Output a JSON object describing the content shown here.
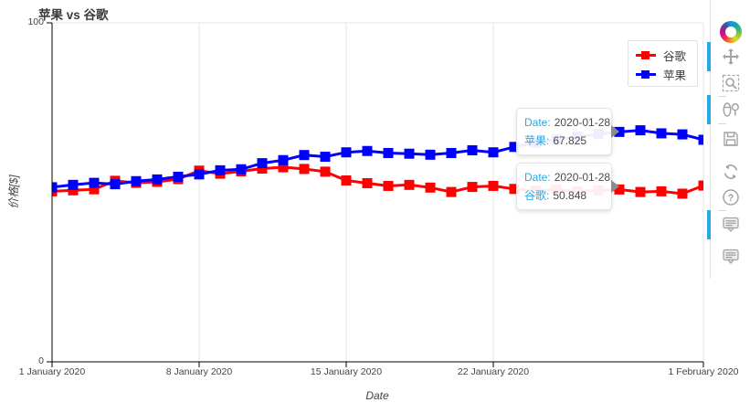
{
  "chart_data": {
    "type": "line",
    "title": "苹果 vs 谷歌",
    "xlabel": "Date",
    "ylabel": "价格[$]",
    "ylim": [
      0,
      100
    ],
    "grid": "vertical",
    "legend_position": "top-right",
    "marker": "square",
    "x": [
      "2020-01-01",
      "2020-01-02",
      "2020-01-03",
      "2020-01-04",
      "2020-01-05",
      "2020-01-06",
      "2020-01-07",
      "2020-01-08",
      "2020-01-09",
      "2020-01-10",
      "2020-01-11",
      "2020-01-12",
      "2020-01-13",
      "2020-01-14",
      "2020-01-15",
      "2020-01-16",
      "2020-01-17",
      "2020-01-18",
      "2020-01-19",
      "2020-01-20",
      "2020-01-21",
      "2020-01-22",
      "2020-01-23",
      "2020-01-24",
      "2020-01-25",
      "2020-01-26",
      "2020-01-27",
      "2020-01-28",
      "2020-01-29",
      "2020-01-30",
      "2020-01-31",
      "2020-02-01"
    ],
    "x_tick_index": [
      0,
      7,
      14,
      21,
      31
    ],
    "x_tick_labels": [
      "1 January 2020",
      "8 January 2020",
      "15 January 2020",
      "22 January 2020",
      "1 February 2020"
    ],
    "y_tick_labels": [
      "0",
      "100"
    ],
    "series": [
      {
        "name": "谷歌",
        "color": "#ff0000",
        "values": [
          50.3,
          50.6,
          50.9,
          53.4,
          52.8,
          53.1,
          53.9,
          56.4,
          55.5,
          56.2,
          57.0,
          57.4,
          56.9,
          56.1,
          53.5,
          52.7,
          51.9,
          52.2,
          51.4,
          50.1,
          51.6,
          51.9,
          51.0,
          50.5,
          50.8,
          50.3,
          50.6,
          50.848,
          50.1,
          50.3,
          49.6,
          52.0
        ]
      },
      {
        "name": "苹果",
        "color": "#0000ff",
        "values": [
          51.5,
          52.2,
          52.8,
          52.4,
          53.3,
          53.8,
          54.6,
          55.3,
          56.5,
          56.8,
          58.6,
          59.5,
          61.0,
          60.5,
          61.8,
          62.2,
          61.6,
          61.4,
          61.1,
          61.6,
          62.4,
          61.8,
          63.4,
          64.7,
          65.6,
          66.4,
          67.2,
          67.825,
          68.3,
          67.4,
          67.1,
          65.5
        ]
      }
    ]
  },
  "tooltips": [
    {
      "series": "苹果",
      "rows": [
        {
          "label": "Date:",
          "value": "2020-01-28"
        },
        {
          "label": "苹果:",
          "value": "67.825"
        }
      ]
    },
    {
      "series": "谷歌",
      "rows": [
        {
          "label": "Date:",
          "value": "2020-01-28"
        },
        {
          "label": "谷歌:",
          "value": "50.848"
        }
      ]
    }
  ],
  "toolbar": {
    "tools": [
      {
        "name": "pan",
        "active": true
      },
      {
        "name": "box-zoom",
        "active": false
      },
      {
        "name": "wheel-zoom",
        "active": true
      },
      {
        "name": "save",
        "active": false
      },
      {
        "name": "reset",
        "active": false
      },
      {
        "name": "help",
        "active": false
      },
      {
        "name": "hover-apple",
        "active": true
      },
      {
        "name": "hover-google",
        "active": false
      }
    ]
  },
  "colors": {
    "google": "#ff0000",
    "apple": "#0000ff",
    "tooltip_label": "#26aae1",
    "active_tool_indicator": "#26aae1",
    "grid": "#e6e6e6",
    "axis": "#000000",
    "text": "#444444"
  }
}
